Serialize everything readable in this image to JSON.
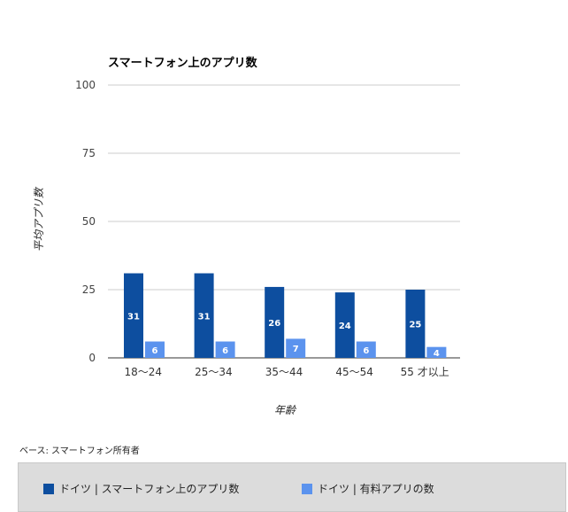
{
  "chart_data": {
    "type": "bar",
    "title": "スマートフォン上のアプリ数",
    "xlabel": "年齢",
    "ylabel": "平均アプリ数",
    "ylim": [
      0,
      100
    ],
    "yticks": [
      0,
      25,
      50,
      75,
      100
    ],
    "categories": [
      "18〜24",
      "25〜34",
      "35〜44",
      "45〜54",
      "55 才以上"
    ],
    "series": [
      {
        "name": "ドイツ | スマートフォン上のアプリ数",
        "color": "#0d4e9f",
        "values": [
          31,
          31,
          26,
          24,
          25
        ]
      },
      {
        "name": "ドイツ | 有料アプリの数",
        "color": "#5b93ee",
        "values": [
          6,
          6,
          7,
          6,
          4
        ]
      }
    ],
    "grid": true,
    "legend_position": "bottom"
  },
  "footnote": "ベース: スマートフォン所有者"
}
